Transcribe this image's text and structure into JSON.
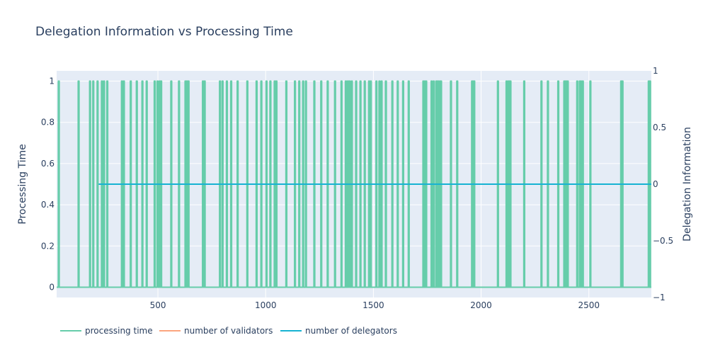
{
  "chart_data": {
    "type": "line",
    "title": "Delegation Information vs Processing Time",
    "ylabel": "Processing Time",
    "y2label": "Delegation Information",
    "xlim": [
      30,
      2790
    ],
    "ylim": [
      -0.05,
      1.05
    ],
    "y2lim": [
      -1,
      1
    ],
    "x_ticks": [
      500,
      1000,
      1500,
      2000,
      2500
    ],
    "x_tick_labels": [
      "500",
      "1000",
      "1500",
      "2000",
      "2500"
    ],
    "y_ticks": [
      0,
      0.2,
      0.4,
      0.6,
      0.8,
      1
    ],
    "y_tick_labels": [
      "0",
      "0.2",
      "0.4",
      "0.6",
      "0.8",
      "1"
    ],
    "y2_ticks": [
      1,
      0.5,
      0,
      -0.5,
      -1
    ],
    "y2_tick_labels": [
      "1",
      "0.5",
      "0",
      "−0.5",
      "−1"
    ],
    "grid": true,
    "legend_position": "bottom-left",
    "series": [
      {
        "name": "processing time",
        "axis": "left",
        "color": "#66cdaa",
        "spikes": [
          [
            38,
            42
          ],
          [
            130,
            134
          ],
          [
            183,
            187
          ],
          [
            198,
            202
          ],
          [
            218,
            222
          ],
          [
            238,
            242
          ],
          [
            248,
            252
          ],
          [
            263,
            267
          ],
          [
            331,
            335
          ],
          [
            340,
            344
          ],
          [
            372,
            376
          ],
          [
            400,
            404
          ],
          [
            426,
            430
          ],
          [
            446,
            450
          ],
          [
            483,
            487
          ],
          [
            496,
            500
          ],
          [
            506,
            510
          ],
          [
            513,
            517
          ],
          [
            560,
            564
          ],
          [
            596,
            600
          ],
          [
            626,
            630
          ],
          [
            632,
            636
          ],
          [
            636,
            640
          ],
          [
            640,
            644
          ],
          [
            707,
            711
          ],
          [
            715,
            719
          ],
          [
            786,
            790
          ],
          [
            798,
            802
          ],
          [
            818,
            822
          ],
          [
            838,
            842
          ],
          [
            868,
            872
          ],
          [
            913,
            917
          ],
          [
            956,
            960
          ],
          [
            978,
            982
          ],
          [
            1002,
            1006
          ],
          [
            1020,
            1024
          ],
          [
            1040,
            1044
          ],
          [
            1048,
            1052
          ],
          [
            1094,
            1098
          ],
          [
            1134,
            1138
          ],
          [
            1154,
            1158
          ],
          [
            1172,
            1176
          ],
          [
            1185,
            1189
          ],
          [
            1224,
            1228
          ],
          [
            1256,
            1260
          ],
          [
            1286,
            1290
          ],
          [
            1320,
            1324
          ],
          [
            1350,
            1354
          ],
          [
            1370,
            1374
          ],
          [
            1378,
            1382
          ],
          [
            1384,
            1388
          ],
          [
            1388,
            1392
          ],
          [
            1398,
            1402
          ],
          [
            1418,
            1422
          ],
          [
            1438,
            1442
          ],
          [
            1458,
            1462
          ],
          [
            1478,
            1482
          ],
          [
            1486,
            1490
          ],
          [
            1512,
            1516
          ],
          [
            1526,
            1530
          ],
          [
            1536,
            1540
          ],
          [
            1556,
            1560
          ],
          [
            1586,
            1590
          ],
          [
            1611,
            1615
          ],
          [
            1636,
            1640
          ],
          [
            1662,
            1666
          ],
          [
            1730,
            1734
          ],
          [
            1737,
            1741
          ],
          [
            1743,
            1747
          ],
          [
            1768,
            1772
          ],
          [
            1778,
            1782
          ],
          [
            1790,
            1794
          ],
          [
            1795,
            1799
          ],
          [
            1800,
            1804
          ],
          [
            1808,
            1812
          ],
          [
            1812,
            1816
          ],
          [
            1858,
            1862
          ],
          [
            1887,
            1891
          ],
          [
            1956,
            1960
          ],
          [
            1962,
            1966
          ],
          [
            1966,
            1970
          ],
          [
            2076,
            2080
          ],
          [
            2116,
            2120
          ],
          [
            2124,
            2128
          ],
          [
            2128,
            2132
          ],
          [
            2134,
            2138
          ],
          [
            2198,
            2202
          ],
          [
            2278,
            2282
          ],
          [
            2308,
            2312
          ],
          [
            2356,
            2360
          ],
          [
            2384,
            2388
          ],
          [
            2390,
            2394
          ],
          [
            2396,
            2400
          ],
          [
            2400,
            2404
          ],
          [
            2444,
            2448
          ],
          [
            2456,
            2460
          ],
          [
            2462,
            2466
          ],
          [
            2470,
            2474
          ],
          [
            2505,
            2509
          ],
          [
            2648,
            2652
          ],
          [
            2654,
            2658
          ],
          [
            2776,
            2780
          ],
          [
            2782,
            2786
          ]
        ]
      },
      {
        "name": "number of validators",
        "axis": "right",
        "color": "#fca57e",
        "x": [],
        "y": []
      },
      {
        "name": "number of delegators",
        "axis": "right",
        "color": "#17b3d2",
        "x": [
          225,
          2790
        ],
        "y": [
          0,
          0
        ]
      }
    ]
  }
}
